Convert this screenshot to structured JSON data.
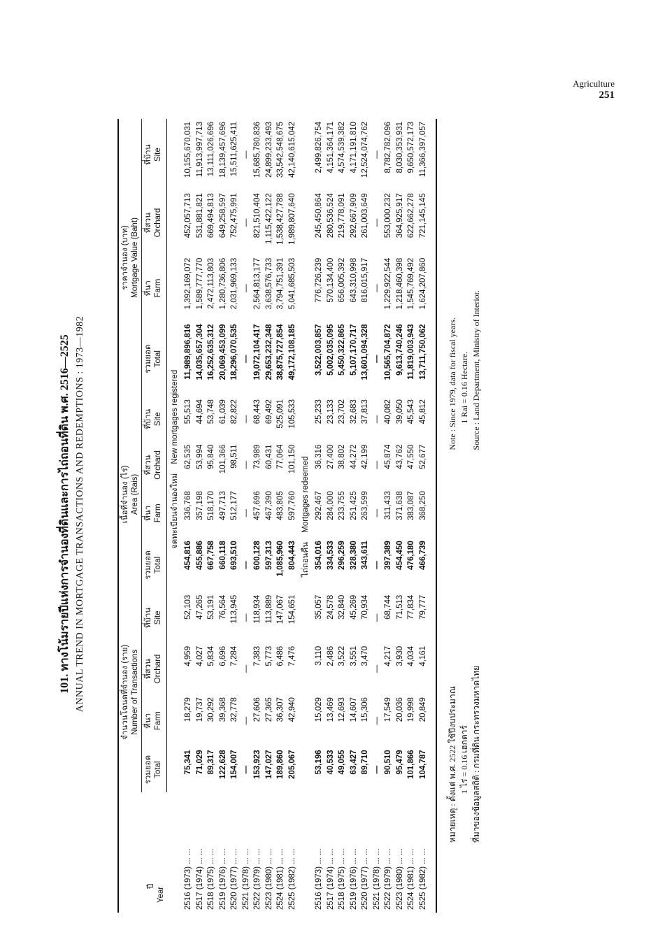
{
  "header": {
    "section": "Agriculture",
    "page": "251"
  },
  "title": {
    "thai": "101. ทางโน้มรายปีแห่งการจำนองที่ดินและการไถ่ถอนที่ดิน พ.ศ. 2516—2525",
    "english": "ANNUAL TREND IN MORTGAGE TRANSACTIONS AND REDEMPTIONS : 1973—1982"
  },
  "columns": {
    "year_thai": "ปี",
    "year": "Year",
    "transactions_thai": "จำนวนโฉนดที่จำนอง (ราย)",
    "transactions": "Number of Transactions",
    "area_thai": "เนื้อที่จำนอง (ไร่)",
    "area": "Area (Rais)",
    "value_thai": "ราคาจำนอง (บาท)",
    "value": "Mortgage Value (Baht)",
    "sub": [
      {
        "thai": "รวมยอด",
        "en": "Total"
      },
      {
        "thai": "ที่นา",
        "en": "Farm"
      },
      {
        "thai": "ที่สวน",
        "en": "Orchard"
      },
      {
        "thai": "ที่บ้าน",
        "en": "Site"
      }
    ]
  },
  "sections": [
    {
      "label_thai": "จดทะเบียนจำนองใหม่",
      "label": "New mortgages registered",
      "rows": [
        [
          "2516 (1973) ... ...",
          "75,341",
          "18,279",
          "4,959",
          "52,103",
          "454,816",
          "336,768",
          "62,535",
          "55,513",
          "11,989,896,816",
          "1,392,169,072",
          "452,057,713",
          "10,155,670,031"
        ],
        [
          "2517 (1974) ... ...",
          "71,029",
          "19,737",
          "4,027",
          "47,265",
          "455,886",
          "357,198",
          "53,994",
          "44,694",
          "14,035,657,304",
          "1,589,777,770",
          "531,881,821",
          "11,913,997,713"
        ],
        [
          "2518 (1975) ... ...",
          "89,317",
          "30,292",
          "5,834",
          "53,191",
          "667,758",
          "518,170",
          "95,840",
          "53,748",
          "16,252,635,312",
          "2,472,113,803",
          "669,494,813",
          "13,111,026,696"
        ],
        [
          "2519 (1976) ... ...",
          "122,628",
          "39,368",
          "6,696",
          "76,564",
          "660,118",
          "497,713",
          "101,366",
          "61,039",
          "20,069,453,099",
          "1,280,736,806",
          "649,258,597",
          "18,139,457,696"
        ],
        [
          "2520 (1977) ... ...",
          "154,007",
          "32,778",
          "7,284",
          "113,945",
          "693,510",
          "512,177",
          "98,511",
          "82,822",
          "18,296,070,535",
          "2,031,969,133",
          "752,475,991",
          "15,511,625,411"
        ],
        [
          "2521 (1978) ... ...",
          "—",
          "—",
          "—",
          "—",
          "—",
          "—",
          "—",
          "—",
          "—",
          "—",
          "—",
          "—"
        ],
        [
          "2522 (1979) ... ...",
          "153,923",
          "27,606",
          "7,383",
          "118,934",
          "600,128",
          "457,696",
          "73,989",
          "68,443",
          "19,072,104,417",
          "2,564,813,177",
          "821,510,404",
          "15,685,780,836"
        ],
        [
          "2523 (1980) ... ...",
          "147,027",
          "27,365",
          "5,773",
          "113,889",
          "597,313",
          "467,390",
          "60,431",
          "69,492",
          "29,653,232,348",
          "3,638,576,733",
          "1,115,422,122",
          "24,899,233,493"
        ],
        [
          "2524 (1981) ... ...",
          "189,860",
          "36,307",
          "6,486",
          "147,067",
          "1,085,960",
          "483,805",
          "77,064",
          "525,091",
          "38,875,727,854",
          "3,794,751,391",
          "1,538,427,788",
          "33,542,548,675"
        ],
        [
          "2525 (1982) ... ...",
          "205,067",
          "42,940",
          "7,476",
          "154,651",
          "804,443",
          "597,760",
          "101,150",
          "105,533",
          "49,172,108,185",
          "5,041,685,503",
          "1,989,807,640",
          "42,140,615,042"
        ]
      ]
    },
    {
      "label_thai": "ไถ่ถอนคืน",
      "label": "Mortgages redeemed",
      "rows": [
        [
          "2516 (1973) ... ...",
          "53,196",
          "15,029",
          "3,110",
          "35,057",
          "354,016",
          "292,467",
          "36,316",
          "25,233",
          "3,522,003,857",
          "776,726,239",
          "245,450,864",
          "2,499,826,754"
        ],
        [
          "2517 (1974) ... ...",
          "40,533",
          "13,469",
          "2,486",
          "24,578",
          "334,533",
          "284,000",
          "27,400",
          "23,133",
          "5,002,035,095",
          "570,134,400",
          "280,536,524",
          "4,151,364,171"
        ],
        [
          "2518 (1975) ... ...",
          "49,055",
          "12,693",
          "3,522",
          "32,840",
          "296,259",
          "233,755",
          "38,802",
          "23,702",
          "5,450,322,865",
          "656,005,392",
          "219,778,091",
          "4,574,539,382"
        ],
        [
          "2519 (1976) ... ...",
          "63,427",
          "14,607",
          "3,551",
          "45,269",
          "328,380",
          "251,425",
          "44,272",
          "32,683",
          "5,107,170,717",
          "643,310,998",
          "292,667,909",
          "4,171,191,810"
        ],
        [
          "2520 (1977) ... ...",
          "89,710",
          "15,306",
          "3,470",
          "70,934",
          "343,611",
          "263,599",
          "42,199",
          "37,813",
          "13,601,094,328",
          "816,015,917",
          "261,003,649",
          "12,524,074,762"
        ],
        [
          "2521 (1978) ... ...",
          "—",
          "—",
          "—",
          "—",
          "—",
          "—",
          "—",
          "—",
          "—",
          "—",
          "—",
          "—"
        ],
        [
          "2522 (1979) ... ...",
          "90,510",
          "17,549",
          "4,217",
          "68,744",
          "397,389",
          "311,433",
          "45,874",
          "40,082",
          "10,565,704,872",
          "1,229,922,544",
          "553,000,232",
          "8,782,782,096"
        ],
        [
          "2523 (1980) ... ...",
          "95,479",
          "20,036",
          "3,930",
          "71,513",
          "454,450",
          "371,638",
          "43,762",
          "39,050",
          "9,613,740,246",
          "1,218,460,398",
          "364,925,917",
          "8,030,353,931"
        ],
        [
          "2524 (1981) ... ...",
          "101,866",
          "19,998",
          "4,034",
          "77,834",
          "476,180",
          "383,087",
          "47,550",
          "45,543",
          "11,819,003,943",
          "1,545,769,492",
          "622,662,278",
          "9,650,572,173"
        ],
        [
          "2525 (1982) ... ...",
          "104,787",
          "20,849",
          "4,161",
          "79,777",
          "466,739",
          "368,250",
          "52,677",
          "45,812",
          "13,711,750,062",
          "1,624,207,860",
          "721,145,145",
          "11,366,397,057"
        ]
      ]
    }
  ],
  "notes": {
    "thai_note": "หมายเหตุ : ตั้งแต่ พ.ศ. 2522 ใช้ปีงบประมาณ",
    "thai_rai": "1 ไร่ = 0.16 เฮกตาร์",
    "thai_source": "ที่มาของข้อมูลสถิติ : กรมที่ดิน กระทรวงมหาดไทย",
    "note": "Note : Since 1979, data for fiscal years.",
    "rai": "1 Rai = 0.16 Hectare.",
    "source": "Source : Land Department, Ministry of Interior."
  }
}
